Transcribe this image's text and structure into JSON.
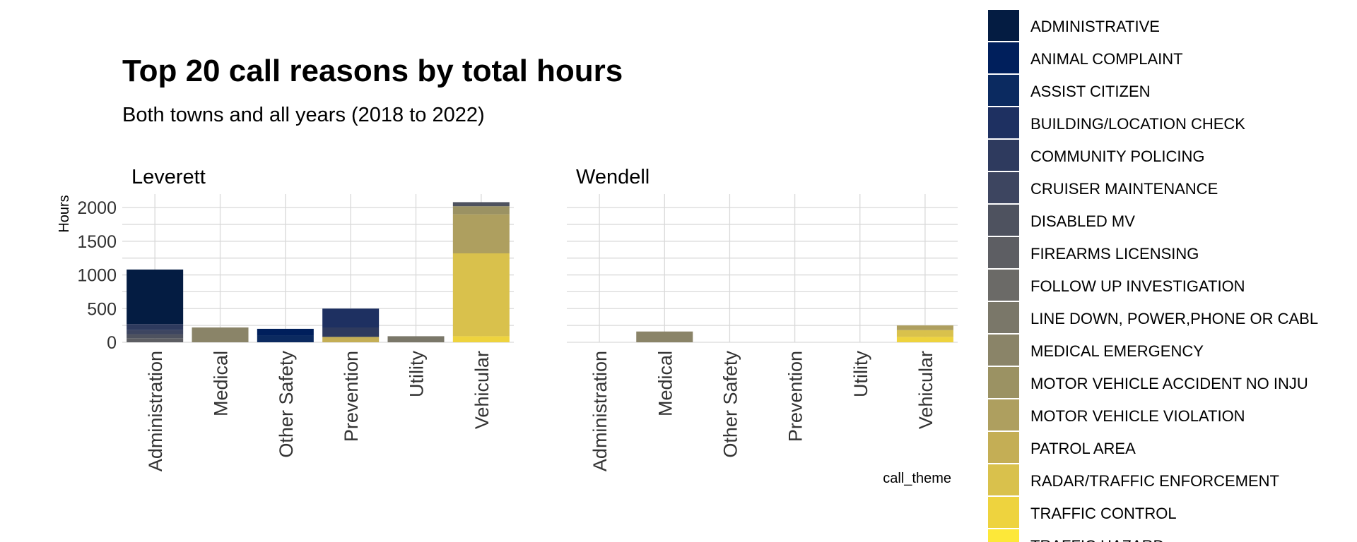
{
  "chart_data": {
    "type": "bar",
    "title": "Top 20 call reasons by total hours",
    "subtitle": "Both towns and all years (2018 to 2022)",
    "ylabel": "Hours",
    "xlabel": "call_theme",
    "ylim": [
      0,
      2200
    ],
    "yticks": [
      0,
      500,
      1000,
      1500,
      2000
    ],
    "grid": true,
    "stacked": true,
    "categories": [
      "Administration",
      "Medical",
      "Other Safety",
      "Prevention",
      "Utility",
      "Vehicular"
    ],
    "legend_position": "right",
    "legend": [
      {
        "name": "ADMINISTRATIVE",
        "color": "#041c42"
      },
      {
        "name": "ANIMAL COMPLAINT",
        "color": "#001f5c"
      },
      {
        "name": "ASSIST CITIZEN",
        "color": "#0b2a60"
      },
      {
        "name": "BUILDING/LOCATION CHECK",
        "color": "#1e3061"
      },
      {
        "name": "COMMUNITY POLICING",
        "color": "#2e3a5e"
      },
      {
        "name": "CRUISER MAINTENANCE",
        "color": "#3d4560"
      },
      {
        "name": "DISABLED MV",
        "color": "#4e525f"
      },
      {
        "name": "FIREARMS LICENSING",
        "color": "#5d5e63"
      },
      {
        "name": "FOLLOW UP INVESTIGATION",
        "color": "#6b6a67"
      },
      {
        "name": "LINE DOWN, POWER,PHONE OR CABL",
        "color": "#7a7769"
      },
      {
        "name": "MEDICAL EMERGENCY",
        "color": "#8a8468"
      },
      {
        "name": "MOTOR VEHICLE ACCIDENT NO INJU",
        "color": "#9b9263"
      },
      {
        "name": "MOTOR VEHICLE VIOLATION",
        "color": "#ae9f5f"
      },
      {
        "name": "PATROL AREA",
        "color": "#c4ae55"
      },
      {
        "name": "RADAR/TRAFFIC ENFORCEMENT",
        "color": "#d9c14c"
      },
      {
        "name": "TRAFFIC CONTROL",
        "color": "#eed33e"
      },
      {
        "name": "TRAFFIC HAZARD",
        "color": "#fde839"
      }
    ],
    "panels": [
      {
        "name": "Leverett",
        "stacks": [
          {
            "category": "Administration",
            "segments": [
              {
                "series": "FIREARMS LICENSING",
                "value": 60
              },
              {
                "series": "DISABLED MV",
                "value": 60
              },
              {
                "series": "CRUISER MAINTENANCE",
                "value": 60
              },
              {
                "series": "COMMUNITY POLICING",
                "value": 90
              },
              {
                "series": "ADMINISTRATIVE",
                "value": 810
              }
            ]
          },
          {
            "category": "Medical",
            "segments": [
              {
                "series": "MEDICAL EMERGENCY",
                "value": 220
              }
            ]
          },
          {
            "category": "Other Safety",
            "segments": [
              {
                "series": "ASSIST CITIZEN",
                "value": 100
              },
              {
                "series": "ANIMAL COMPLAINT",
                "value": 100
              }
            ]
          },
          {
            "category": "Prevention",
            "segments": [
              {
                "series": "PATROL AREA",
                "value": 80
              },
              {
                "series": "COMMUNITY POLICING",
                "value": 140
              },
              {
                "series": "BUILDING/LOCATION CHECK",
                "value": 280
              }
            ]
          },
          {
            "category": "Utility",
            "segments": [
              {
                "series": "LINE DOWN, POWER,PHONE OR CABL",
                "value": 90
              }
            ]
          },
          {
            "category": "Vehicular",
            "segments": [
              {
                "series": "TRAFFIC CONTROL",
                "value": 90
              },
              {
                "series": "RADAR/TRAFFIC ENFORCEMENT",
                "value": 1230
              },
              {
                "series": "MOTOR VEHICLE VIOLATION",
                "value": 580
              },
              {
                "series": "MOTOR VEHICLE ACCIDENT NO INJU",
                "value": 120
              },
              {
                "series": "DISABLED MV",
                "value": 60
              }
            ]
          }
        ]
      },
      {
        "name": "Wendell",
        "stacks": [
          {
            "category": "Medical",
            "segments": [
              {
                "series": "MEDICAL EMERGENCY",
                "value": 160
              }
            ]
          },
          {
            "category": "Vehicular",
            "segments": [
              {
                "series": "TRAFFIC CONTROL",
                "value": 80
              },
              {
                "series": "RADAR/TRAFFIC ENFORCEMENT",
                "value": 100
              },
              {
                "series": "MOTOR VEHICLE VIOLATION",
                "value": 70
              }
            ]
          }
        ]
      }
    ]
  }
}
